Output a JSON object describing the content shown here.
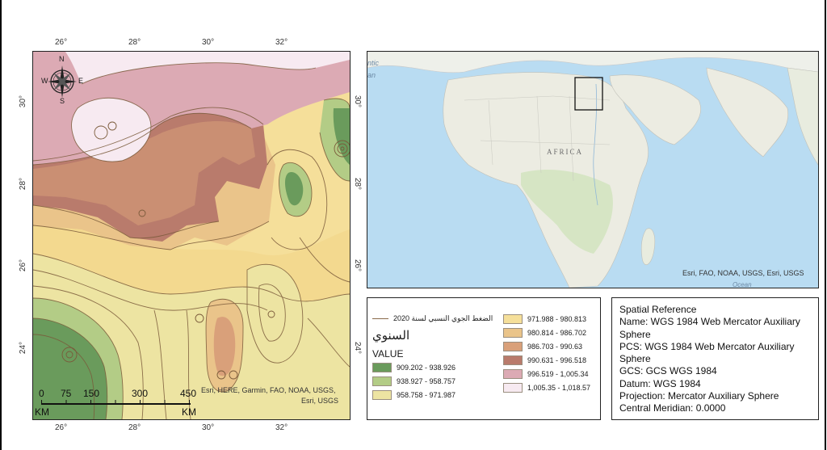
{
  "main_map": {
    "longitude_ticks": [
      "26°",
      "28°",
      "30°",
      "32°"
    ],
    "latitude_ticks": [
      "30°",
      "28°",
      "26°",
      "24°"
    ],
    "attribution": "Esri, HERE, Garmin, FAO, NOAA, USGS,",
    "attribution2": "Esri, USGS",
    "compass": {
      "n": "N",
      "s": "S",
      "e": "E",
      "w": "W"
    },
    "scale_bar": {
      "labels": [
        "0",
        "75",
        "150",
        "300",
        "450"
      ],
      "unit_left": "KM",
      "unit_right": "KM"
    }
  },
  "locator_map": {
    "continent_label": "AFRICA",
    "attribution": "Esri, FAO, NOAA, USGS, Esri, USGS",
    "partial_text_1": "ntic",
    "partial_text_2": "an",
    "partial_text_3": "Ocean"
  },
  "legend": {
    "line_label": "الضغط الجوي النسبي لسنة 2020",
    "title_arabic": "السنوي",
    "value_heading": "VALUE",
    "classes": [
      {
        "range": "909.202 - 938.926",
        "color": "#6a9b5c"
      },
      {
        "range": "938.927 - 958.757",
        "color": "#b3cc86"
      },
      {
        "range": "958.758 - 971.987",
        "color": "#ede4a2"
      },
      {
        "range": "971.988 - 980.813",
        "color": "#f5df9a"
      },
      {
        "range": "980.814 - 986.702",
        "color": "#eac48a"
      },
      {
        "range": "986.703 - 990.63",
        "color": "#d9a07a"
      },
      {
        "range": "990.631 - 996.518",
        "color": "#b97b6c"
      },
      {
        "range": "996.519 - 1,005.34",
        "color": "#dcaab4"
      },
      {
        "range": "1,005.35 - 1,018.57",
        "color": "#f7eaf1"
      }
    ]
  },
  "spatial_reference": {
    "lines": [
      "Spatial Reference",
      "Name: WGS 1984 Web Mercator Auxiliary",
      "Sphere",
      "PCS: WGS 1984 Web Mercator Auxiliary",
      "Sphere",
      "GCS: GCS WGS 1984",
      "Datum: WGS 1984",
      "Projection: Mercator Auxiliary Sphere",
      "Central Meridian: 0.0000"
    ]
  }
}
